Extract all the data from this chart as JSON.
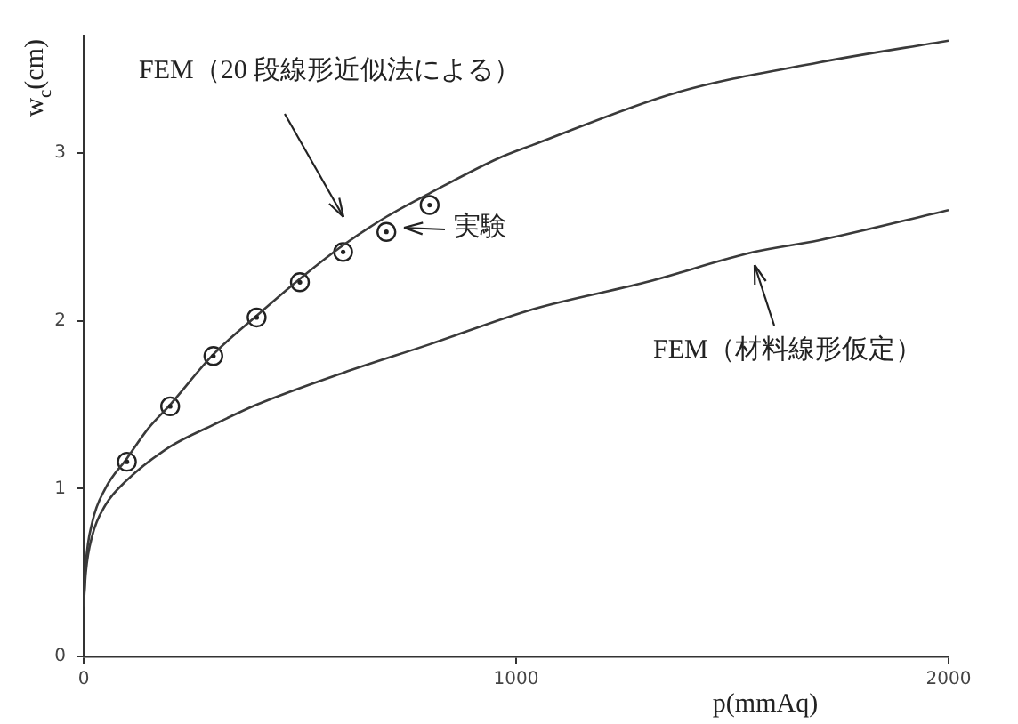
{
  "chart_data": {
    "type": "line",
    "xlabel": "p(mmAq)",
    "ylabel": "w$_{c}$(cm)",
    "xlim": [
      0,
      2000
    ],
    "xticks": [
      0,
      1000,
      2000
    ],
    "ylim": [
      0,
      3.7
    ],
    "yticks": [
      0,
      1,
      2,
      3
    ],
    "grid": false,
    "legend": false,
    "series": [
      {
        "color": "#3a3a3a",
        "marker": "none",
        "x": [
          0,
          5,
          20,
          50,
          100,
          150,
          200,
          300,
          400,
          500,
          600,
          700,
          800,
          960,
          1040,
          1370,
          1700,
          2000
        ],
        "values": [
          0.3,
          0.55,
          0.8,
          1.0,
          1.18,
          1.36,
          1.5,
          1.8,
          2.03,
          2.25,
          2.45,
          2.62,
          2.76,
          2.97,
          3.05,
          3.36,
          3.54,
          3.67
        ]
      },
      {
        "color": "#3a3a3a",
        "marker": "none",
        "x": [
          0,
          5,
          20,
          50,
          100,
          200,
          300,
          400,
          600,
          800,
          1040,
          1300,
          1550,
          1700,
          2000
        ],
        "values": [
          0.3,
          0.5,
          0.72,
          0.9,
          1.05,
          1.25,
          1.38,
          1.5,
          1.69,
          1.86,
          2.07,
          2.23,
          2.41,
          2.48,
          2.66
        ]
      },
      {
        "type": "scatter",
        "color": "#222222",
        "marker": "circle",
        "x": [
          100,
          200,
          300,
          400,
          500,
          600,
          700,
          800
        ],
        "values": [
          1.16,
          1.49,
          1.79,
          2.02,
          2.23,
          2.41,
          2.53,
          2.69
        ]
      }
    ],
    "annotations": [
      "FEM（20 段線形近似法による）",
      "実験",
      "FEM（材料線形仮定）"
    ]
  }
}
